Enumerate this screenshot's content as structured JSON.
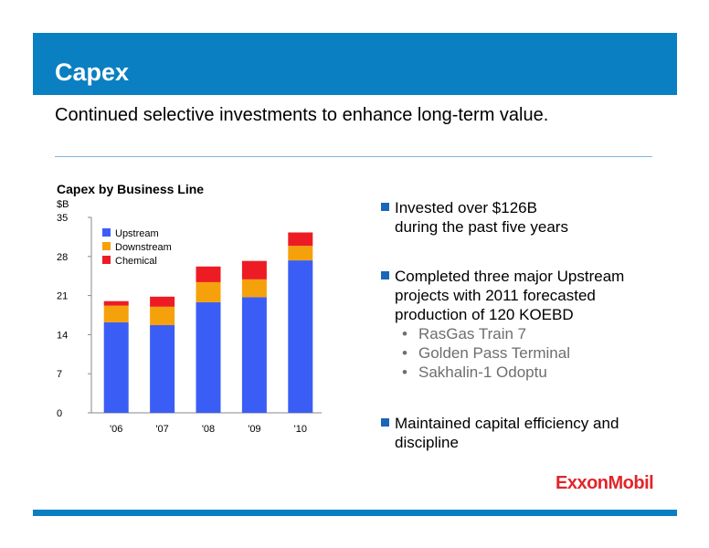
{
  "header": {
    "title": "Capex"
  },
  "subtitle": "Continued selective investments to enhance long-term value.",
  "chart_data": {
    "type": "bar",
    "stacked": true,
    "title": "Capex by Business Line",
    "ylabel": "$B",
    "categories": [
      "'06",
      "'07",
      "'08",
      "'09",
      "'10"
    ],
    "yticks": [
      "0",
      "7",
      "14",
      "21",
      "28",
      "35"
    ],
    "ylim": [
      0,
      35
    ],
    "series": [
      {
        "name": "Upstream",
        "color": "#3a5ef5",
        "values": [
          16.2,
          15.7,
          19.8,
          20.7,
          27.3
        ]
      },
      {
        "name": "Downstream",
        "color": "#f5a10c",
        "values": [
          3.0,
          3.3,
          3.6,
          3.2,
          2.6
        ]
      },
      {
        "name": "Chemical",
        "color": "#ed1c24",
        "values": [
          0.8,
          1.8,
          2.8,
          3.3,
          2.4
        ]
      }
    ],
    "legend": "top-left",
    "grid": false
  },
  "bullets": [
    {
      "lines": [
        "Invested over $126B",
        "during the past five years"
      ]
    },
    {
      "lines": [
        "Completed three major Upstream",
        "projects with 2011 forecasted",
        "production of 120 KOEBD"
      ]
    },
    {
      "lines": [
        "Maintained capital efficiency and",
        "discipline"
      ]
    }
  ],
  "sub_bullets": [
    "RasGas Train 7",
    "Golden Pass Terminal",
    "Sakhalin-1 Odoptu"
  ],
  "logo": {
    "text": "ExxonMobil"
  },
  "colors": {
    "brand_blue": "#0a7fc1",
    "logo_red": "#e2252b",
    "bullet_square": "#1a66b8"
  }
}
